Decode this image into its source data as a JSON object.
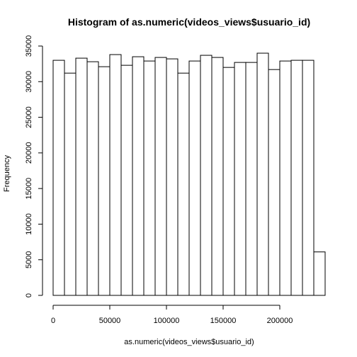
{
  "chart_data": {
    "type": "bar",
    "title": "Histogram of as.numeric(videos_views$usuario_id)",
    "xlabel": "as.numeric(videos_views$usuario_id)",
    "ylabel": "Frequency",
    "bin_width": 10000,
    "bins": [
      {
        "start": 0,
        "end": 10000,
        "count": 33000
      },
      {
        "start": 10000,
        "end": 20000,
        "count": 31200
      },
      {
        "start": 20000,
        "end": 30000,
        "count": 33300
      },
      {
        "start": 30000,
        "end": 40000,
        "count": 32800
      },
      {
        "start": 40000,
        "end": 50000,
        "count": 32100
      },
      {
        "start": 50000,
        "end": 60000,
        "count": 33800
      },
      {
        "start": 60000,
        "end": 70000,
        "count": 32300
      },
      {
        "start": 70000,
        "end": 80000,
        "count": 33500
      },
      {
        "start": 80000,
        "end": 90000,
        "count": 32900
      },
      {
        "start": 90000,
        "end": 100000,
        "count": 33400
      },
      {
        "start": 100000,
        "end": 110000,
        "count": 33200
      },
      {
        "start": 110000,
        "end": 120000,
        "count": 31200
      },
      {
        "start": 120000,
        "end": 130000,
        "count": 32900
      },
      {
        "start": 130000,
        "end": 140000,
        "count": 33700
      },
      {
        "start": 140000,
        "end": 150000,
        "count": 33400
      },
      {
        "start": 150000,
        "end": 160000,
        "count": 32000
      },
      {
        "start": 160000,
        "end": 170000,
        "count": 32700
      },
      {
        "start": 170000,
        "end": 180000,
        "count": 32700
      },
      {
        "start": 180000,
        "end": 190000,
        "count": 34000
      },
      {
        "start": 190000,
        "end": 200000,
        "count": 31700
      },
      {
        "start": 200000,
        "end": 210000,
        "count": 32900
      },
      {
        "start": 210000,
        "end": 220000,
        "count": 33000
      },
      {
        "start": 220000,
        "end": 230000,
        "count": 33000
      },
      {
        "start": 230000,
        "end": 240000,
        "count": 6100
      }
    ],
    "xlim": [
      0,
      240000
    ],
    "ylim": [
      0,
      35000
    ],
    "x_ticks": [
      0,
      50000,
      100000,
      150000,
      200000
    ],
    "y_ticks": [
      0,
      5000,
      10000,
      15000,
      20000,
      25000,
      30000,
      35000
    ],
    "grid": false,
    "bar_fill": "#ffffff",
    "bar_stroke": "#000000"
  }
}
